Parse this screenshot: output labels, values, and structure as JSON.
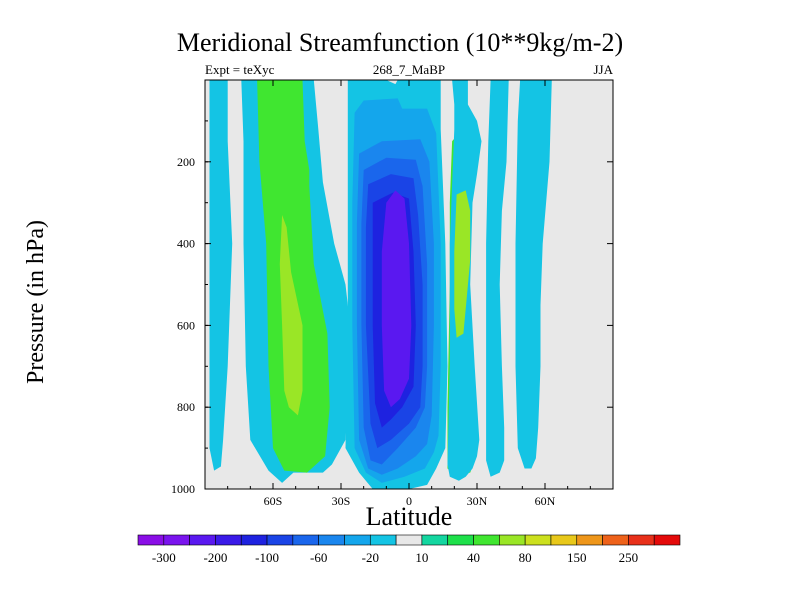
{
  "chart_data": {
    "type": "heatmap",
    "title": "Meridional Streamfunction (10**9kg/m-2)",
    "left_subtitle": "Expt = teXyc",
    "center_subtitle": "268_7_MaBP",
    "right_subtitle": "JJA",
    "xlabel": "Latitude",
    "ylabel": "Pressure (in hPa)",
    "xlim": [
      -90,
      90
    ],
    "ylim": [
      1000,
      0
    ],
    "x_ticks": [
      {
        "value": -60,
        "label": "60S"
      },
      {
        "value": -30,
        "label": "30S"
      },
      {
        "value": 0,
        "label": "0"
      },
      {
        "value": 30,
        "label": "30N"
      },
      {
        "value": 60,
        "label": "60N"
      }
    ],
    "y_ticks": [
      {
        "value": 200,
        "label": "200"
      },
      {
        "value": 400,
        "label": "400"
      },
      {
        "value": 600,
        "label": "600"
      },
      {
        "value": 800,
        "label": "800"
      },
      {
        "value": 1000,
        "label": "1000"
      }
    ],
    "colorbar": {
      "levels": [
        -300,
        -250,
        -200,
        -150,
        -100,
        -80,
        -60,
        -40,
        -20,
        -10,
        10,
        20,
        40,
        60,
        80,
        100,
        150,
        200,
        250,
        300
      ],
      "labels": [
        "-300",
        "-200",
        "-100",
        "-60",
        "-20",
        "10",
        "40",
        "80",
        "150",
        "250"
      ],
      "colors": [
        "#8a0ee6",
        "#7a14ee",
        "#5a18f0",
        "#3a1ae8",
        "#1e22e0",
        "#1a44e6",
        "#1a66ec",
        "#1a86ee",
        "#14a6ec",
        "#14c4e4",
        "#e8e8e8",
        "#14d6a0",
        "#1ee04a",
        "#40e630",
        "#9ae626",
        "#cce01e",
        "#e8c81a",
        "#ee961a",
        "#ee621a",
        "#e8301a",
        "#e40a0a"
      ]
    },
    "background_color": "#e8e8e8",
    "regions": [
      {
        "name": "cyan-band-far-south",
        "color": "#14c4e4",
        "points": [
          [
            -88,
            0
          ],
          [
            -80,
            0
          ],
          [
            -80,
            150
          ],
          [
            -78,
            400
          ],
          [
            -80,
            700
          ],
          [
            -82,
            880
          ],
          [
            -83,
            945
          ],
          [
            -86,
            955
          ],
          [
            -88,
            900
          ]
        ]
      },
      {
        "name": "cyan-broad-south",
        "color": "#14c4e4",
        "points": [
          [
            -74,
            0
          ],
          [
            -42,
            0
          ],
          [
            -40,
            120
          ],
          [
            -38,
            250
          ],
          [
            -33,
            400
          ],
          [
            -28,
            500
          ],
          [
            -26,
            600
          ],
          [
            -27,
            800
          ],
          [
            -28,
            880
          ],
          [
            -34,
            940
          ],
          [
            -38,
            960
          ],
          [
            -51,
            960
          ],
          [
            -56,
            985
          ],
          [
            -62,
            955
          ],
          [
            -70,
            880
          ],
          [
            -72,
            700
          ],
          [
            -73,
            400
          ],
          [
            -73,
            150
          ]
        ]
      },
      {
        "name": "green-south",
        "color": "#40e630",
        "points": [
          [
            -67,
            0
          ],
          [
            -47,
            0
          ],
          [
            -46,
            150
          ],
          [
            -44,
            220
          ],
          [
            -44,
            260
          ],
          [
            -42,
            450
          ],
          [
            -36,
            620
          ],
          [
            -35,
            800
          ],
          [
            -37,
            920
          ],
          [
            -45,
            960
          ],
          [
            -55,
            955
          ],
          [
            -60,
            900
          ],
          [
            -62,
            700
          ],
          [
            -63,
            400
          ],
          [
            -66,
            200
          ]
        ]
      },
      {
        "name": "yellowgreen-south",
        "color": "#9ae626",
        "points": [
          [
            -56,
            330
          ],
          [
            -54,
            360
          ],
          [
            -52,
            470
          ],
          [
            -47,
            600
          ],
          [
            -47,
            760
          ],
          [
            -49,
            820
          ],
          [
            -53,
            800
          ],
          [
            -55,
            760
          ],
          [
            -56,
            600
          ],
          [
            -57,
            450
          ]
        ]
      },
      {
        "name": "cyan-central",
        "color": "#14c4e4",
        "points": [
          [
            -27,
            0
          ],
          [
            -10,
            0
          ],
          [
            -6,
            10
          ],
          [
            -5,
            0
          ],
          [
            14,
            0
          ],
          [
            14,
            120
          ],
          [
            16,
            400
          ],
          [
            17,
            700
          ],
          [
            16,
            900
          ],
          [
            12,
            950
          ],
          [
            8,
            990
          ],
          [
            0,
            1000
          ],
          [
            -6,
            1000
          ],
          [
            -16,
            1000
          ],
          [
            -22,
            960
          ],
          [
            -28,
            900
          ],
          [
            -27,
            600
          ],
          [
            -27,
            300
          ]
        ]
      },
      {
        "name": "blue-central-1",
        "color": "#14a6ec",
        "points": [
          [
            -24,
            80
          ],
          [
            -20,
            50
          ],
          [
            -5,
            45
          ],
          [
            -3,
            70
          ],
          [
            8,
            70
          ],
          [
            12,
            130
          ],
          [
            14,
            400
          ],
          [
            14,
            700
          ],
          [
            13,
            870
          ],
          [
            11,
            910
          ],
          [
            7,
            950
          ],
          [
            -2,
            970
          ],
          [
            -12,
            985
          ],
          [
            -19,
            960
          ],
          [
            -24,
            900
          ],
          [
            -25,
            600
          ],
          [
            -25,
            300
          ]
        ]
      },
      {
        "name": "blue-central-2",
        "color": "#1a86ee",
        "points": [
          [
            -22,
            180
          ],
          [
            -12,
            150
          ],
          [
            5,
            145
          ],
          [
            9,
            200
          ],
          [
            11,
            400
          ],
          [
            11,
            600
          ],
          [
            10,
            820
          ],
          [
            8,
            890
          ],
          [
            3,
            920
          ],
          [
            -5,
            950
          ],
          [
            -12,
            965
          ],
          [
            -18,
            950
          ],
          [
            -22,
            880
          ],
          [
            -23,
            600
          ],
          [
            -23,
            350
          ]
        ]
      },
      {
        "name": "blue-central-3",
        "color": "#1a66ec",
        "points": [
          [
            -20,
            220
          ],
          [
            -10,
            190
          ],
          [
            3,
            195
          ],
          [
            6,
            260
          ],
          [
            8,
            450
          ],
          [
            8,
            700
          ],
          [
            7,
            800
          ],
          [
            3,
            850
          ],
          [
            -5,
            900
          ],
          [
            -12,
            940
          ],
          [
            -17,
            930
          ],
          [
            -20,
            850
          ],
          [
            -21,
            600
          ],
          [
            -21,
            350
          ]
        ]
      },
      {
        "name": "blue-central-4",
        "color": "#1a44e6",
        "points": [
          [
            -18,
            255
          ],
          [
            -8,
            230
          ],
          [
            2,
            240
          ],
          [
            4,
            330
          ],
          [
            6,
            500
          ],
          [
            6,
            700
          ],
          [
            5,
            800
          ],
          [
            0,
            840
          ],
          [
            -8,
            880
          ],
          [
            -14,
            900
          ],
          [
            -17,
            840
          ],
          [
            -19,
            600
          ],
          [
            -19,
            360
          ]
        ]
      },
      {
        "name": "blue-central-5",
        "color": "#1e22e0",
        "points": [
          [
            -16,
            300
          ],
          [
            -7,
            275
          ],
          [
            0,
            290
          ],
          [
            2,
            420
          ],
          [
            3,
            600
          ],
          [
            2,
            750
          ],
          [
            -3,
            800
          ],
          [
            -8,
            830
          ],
          [
            -12,
            850
          ],
          [
            -15,
            790
          ],
          [
            -16,
            600
          ],
          [
            -16,
            400
          ]
        ]
      },
      {
        "name": "purple-core",
        "color": "#5a18f0",
        "points": [
          [
            -10,
            300
          ],
          [
            -6,
            270
          ],
          [
            -2,
            290
          ],
          [
            0,
            400
          ],
          [
            1,
            600
          ],
          [
            0,
            730
          ],
          [
            -4,
            780
          ],
          [
            -8,
            800
          ],
          [
            -11,
            760
          ],
          [
            -12,
            600
          ],
          [
            -12,
            420
          ]
        ]
      },
      {
        "name": "green-north",
        "color": "#40e630",
        "points": [
          [
            19,
            150
          ],
          [
            22,
            130
          ],
          [
            28,
            120
          ],
          [
            30,
            150
          ],
          [
            28,
            230
          ],
          [
            26,
            300
          ],
          [
            25,
            500
          ],
          [
            26,
            700
          ],
          [
            27,
            820
          ],
          [
            29,
            930
          ],
          [
            27,
            960
          ],
          [
            20,
            965
          ],
          [
            17,
            950
          ],
          [
            17,
            800
          ],
          [
            18,
            500
          ],
          [
            18,
            300
          ]
        ]
      },
      {
        "name": "cyan-north-edge",
        "color": "#14c4e4",
        "points": [
          [
            19,
            0
          ],
          [
            26,
            0
          ],
          [
            26,
            60
          ],
          [
            30,
            100
          ],
          [
            32,
            150
          ],
          [
            30,
            230
          ],
          [
            28,
            300
          ],
          [
            27,
            500
          ],
          [
            29,
            700
          ],
          [
            31,
            880
          ],
          [
            30,
            920
          ],
          [
            28,
            950
          ],
          [
            25,
            970
          ],
          [
            22,
            980
          ],
          [
            18,
            970
          ],
          [
            17,
            940
          ],
          [
            18,
            700
          ],
          [
            18,
            400
          ],
          [
            20,
            120
          ],
          [
            20,
            60
          ]
        ]
      },
      {
        "name": "yellowgreen-north",
        "color": "#9ae626",
        "points": [
          [
            21,
            280
          ],
          [
            25,
            270
          ],
          [
            27,
            320
          ],
          [
            27,
            440
          ],
          [
            25,
            560
          ],
          [
            24,
            620
          ],
          [
            21,
            630
          ],
          [
            20,
            560
          ],
          [
            20,
            420
          ]
        ]
      },
      {
        "name": "cyan-north-band",
        "color": "#14c4e4",
        "points": [
          [
            36,
            0
          ],
          [
            44,
            0
          ],
          [
            43,
            200
          ],
          [
            41,
            320
          ],
          [
            40,
            500
          ],
          [
            41,
            700
          ],
          [
            42,
            850
          ],
          [
            42,
            930
          ],
          [
            40,
            960
          ],
          [
            36,
            970
          ],
          [
            34,
            930
          ],
          [
            34,
            700
          ],
          [
            34,
            400
          ],
          [
            35,
            150
          ]
        ]
      },
      {
        "name": "cyan-far-north",
        "color": "#14c4e4",
        "points": [
          [
            49,
            0
          ],
          [
            63,
            0
          ],
          [
            62,
            200
          ],
          [
            59,
            400
          ],
          [
            58,
            550
          ],
          [
            58,
            700
          ],
          [
            57,
            850
          ],
          [
            56,
            925
          ],
          [
            54,
            950
          ],
          [
            51,
            950
          ],
          [
            48,
            900
          ],
          [
            47,
            700
          ],
          [
            47,
            400
          ],
          [
            48,
            100
          ]
        ]
      }
    ]
  }
}
